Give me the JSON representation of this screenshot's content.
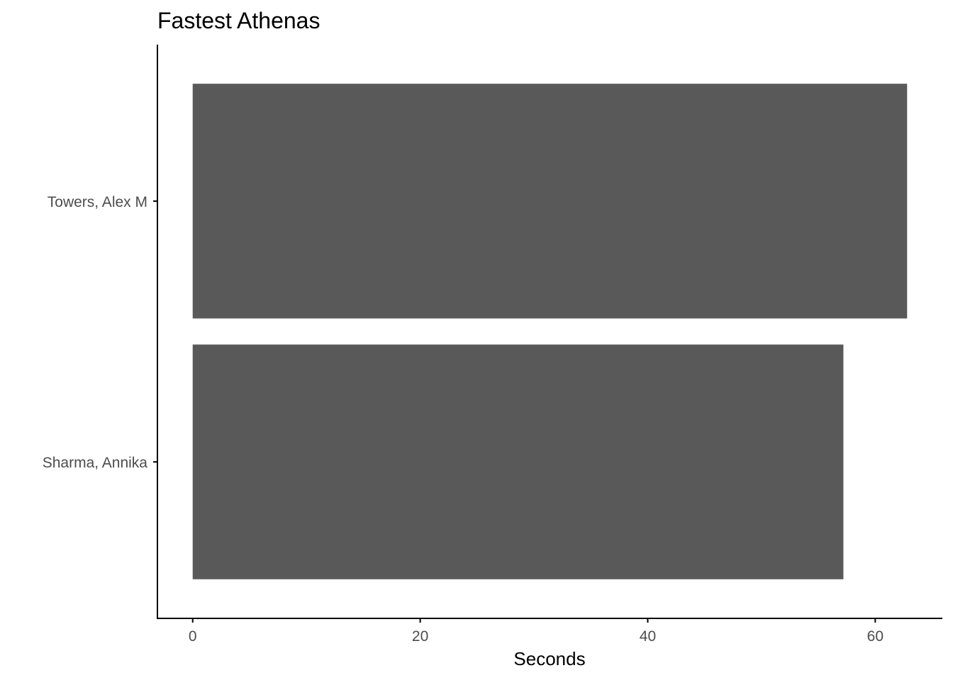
{
  "chart_data": {
    "type": "bar",
    "orientation": "horizontal",
    "title": "Fastest Athenas",
    "xlabel": "Seconds",
    "ylabel": "",
    "categories": [
      "Sharma, Annika",
      "Towers, Alex M"
    ],
    "values": [
      57.2,
      62.8
    ],
    "xlim": [
      -3.1,
      65.9
    ],
    "xticks": [
      0,
      20,
      40,
      60
    ],
    "xtick_labels": [
      "0",
      "20",
      "40",
      "60"
    ],
    "bar_color": "#595959",
    "axis_color": "#000000",
    "tick_label_color": "#4d4d4d",
    "grid": false,
    "legend": "none"
  }
}
